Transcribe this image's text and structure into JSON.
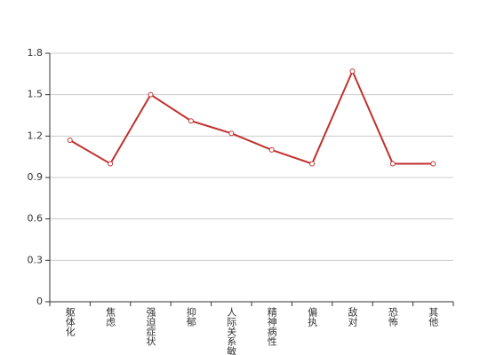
{
  "chart_data": {
    "type": "line",
    "categories": [
      "躯体化",
      "焦虑",
      "强迫症状",
      "抑郁",
      "人际关系敏感",
      "精神病性",
      "偏执",
      "敌对",
      "恐怖",
      "其他"
    ],
    "series": [
      {
        "name": null,
        "color": "#c0312f",
        "values": [
          1.17,
          1.0,
          1.5,
          1.31,
          1.22,
          1.1,
          1.0,
          1.67,
          1.0,
          1.0
        ]
      }
    ],
    "ylim": [
      0,
      1.8
    ],
    "yticks": [
      0,
      0.3,
      0.6,
      0.9,
      1.2,
      1.5,
      1.8
    ],
    "grid": true
  }
}
